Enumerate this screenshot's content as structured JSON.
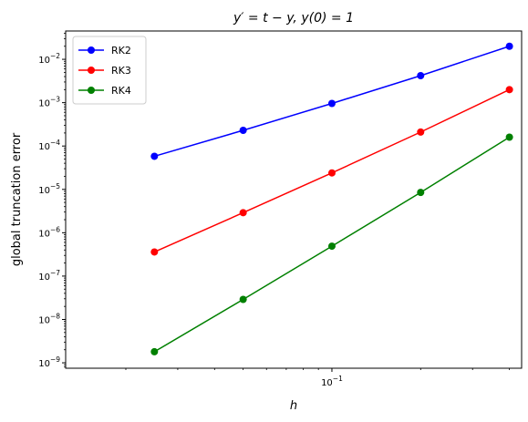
{
  "chart_data": {
    "type": "line",
    "title": "y′ = t − y, y(0) = 1",
    "xlabel": "h",
    "ylabel": "global truncation error",
    "x_scale": "log",
    "y_scale": "log",
    "xlim": [
      0.0125,
      0.44
    ],
    "ylim": [
      7.5e-10,
      0.045
    ],
    "x": [
      0.025,
      0.05,
      0.1,
      0.2,
      0.4
    ],
    "x_tick_labels": [
      {
        "value": 0.1,
        "base": "10",
        "exp": "−1"
      }
    ],
    "y_tick_labels": [
      {
        "value": 1e-09,
        "base": "10",
        "exp": "−9"
      },
      {
        "value": 1e-08,
        "base": "10",
        "exp": "−8"
      },
      {
        "value": 1e-07,
        "base": "10",
        "exp": "−7"
      },
      {
        "value": 1e-06,
        "base": "10",
        "exp": "−6"
      },
      {
        "value": 1e-05,
        "base": "10",
        "exp": "−5"
      },
      {
        "value": 0.0001,
        "base": "10",
        "exp": "−4"
      },
      {
        "value": 0.001,
        "base": "10",
        "exp": "−3"
      },
      {
        "value": 0.01,
        "base": "10",
        "exp": "−2"
      }
    ],
    "series": [
      {
        "name": "RK2",
        "color": "#0000ff",
        "values": [
          5.8e-05,
          0.00023,
          0.00096,
          0.0042,
          0.02
        ]
      },
      {
        "name": "RK3",
        "color": "#ff0000",
        "values": [
          3.6e-07,
          2.9e-06,
          2.4e-05,
          0.00021,
          0.002
        ]
      },
      {
        "name": "RK4",
        "color": "#008000",
        "values": [
          1.8e-09,
          2.9e-08,
          4.9e-07,
          8.5e-06,
          0.00016
        ]
      }
    ],
    "legend": "upper-left",
    "grid": false
  }
}
